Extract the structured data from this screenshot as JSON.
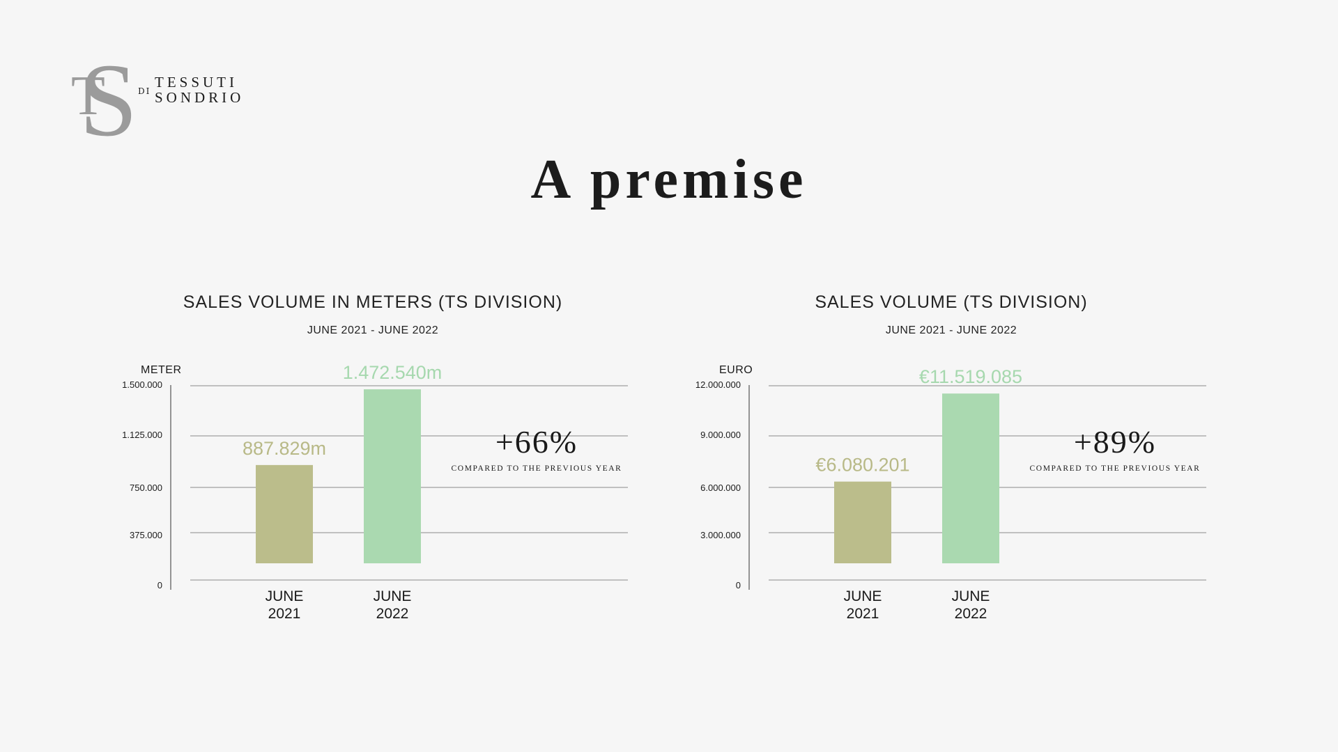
{
  "brand": {
    "monogram": "TS",
    "di": "DI",
    "line1": "TESSUTI",
    "line2": "SONDRIO",
    "color": "#9b9b9b"
  },
  "title": "A premise",
  "colors": {
    "bar_2021": "#bbbd8b",
    "bar_2022": "#aad9b0",
    "label_2021": "#b8b987",
    "label_2022": "#a6d8ae",
    "grid": "#8a8a8a"
  },
  "chart_data": [
    {
      "type": "bar",
      "title": "SALES VOLUME IN METERS (TS DIVISION)",
      "subtitle": "JUNE 2021 - JUNE 2022",
      "ylabel": "METER",
      "ylim": [
        0,
        1500000
      ],
      "yticks": [
        0,
        375000,
        750000,
        1125000,
        1500000
      ],
      "ytick_labels": [
        "0",
        "375.000",
        "750.000",
        "1.125.000",
        "1.500.000"
      ],
      "categories": [
        "JUNE 2021",
        "JUNE 2022"
      ],
      "category_lines": [
        [
          "JUNE",
          "2021"
        ],
        [
          "JUNE",
          "2022"
        ]
      ],
      "values": [
        887829,
        1472540
      ],
      "data_labels": [
        "887.829m",
        "1.472.540m"
      ],
      "delta": "+66%",
      "delta_note": "COMPARED TO THE PREVIOUS YEAR",
      "grid": true
    },
    {
      "type": "bar",
      "title": "SALES VOLUME (TS DIVISION)",
      "subtitle": "JUNE 2021 - JUNE 2022",
      "ylabel": "EURO",
      "ylim": [
        0,
        12000000
      ],
      "yticks": [
        0,
        3000000,
        6000000,
        9000000,
        12000000
      ],
      "ytick_labels": [
        "0",
        "3.000.000",
        "6.000.000",
        "9.000.000",
        "12.000.000"
      ],
      "categories": [
        "JUNE 2021",
        "JUNE 2022"
      ],
      "category_lines": [
        [
          "JUNE",
          "2021"
        ],
        [
          "JUNE",
          "2022"
        ]
      ],
      "values": [
        6080201,
        11519085
      ],
      "data_labels": [
        "€6.080.201",
        "€11.519.085"
      ],
      "delta": "+89%",
      "delta_note": "COMPARED TO THE PREVIOUS YEAR",
      "grid": true
    }
  ]
}
